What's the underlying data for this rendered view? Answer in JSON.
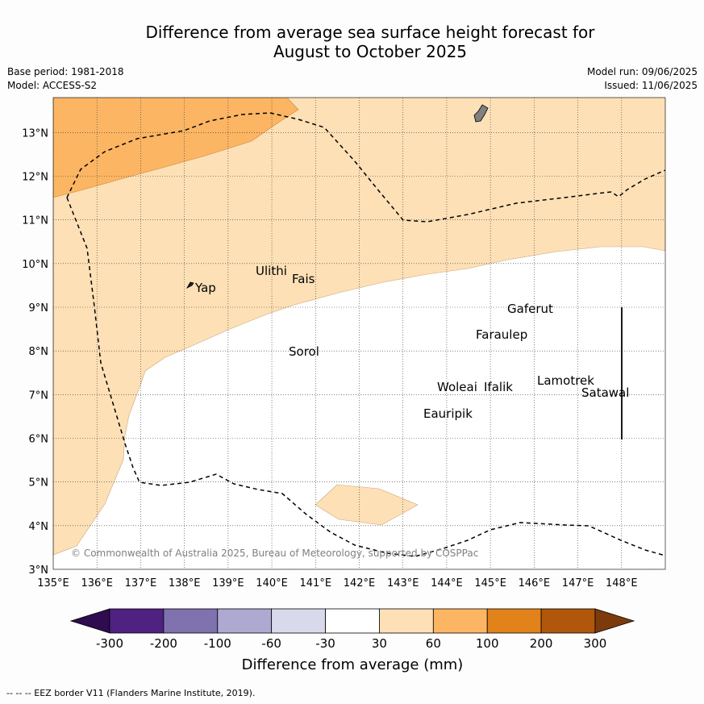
{
  "title_line1": "Difference from average sea surface height forecast for",
  "title_line2": "August to October 2025",
  "base_period": "Base period: 1981-2018",
  "model": "Model: ACCESS-S2",
  "model_run": "Model run: 09/06/2025",
  "issued": "Issued: 11/06/2025",
  "copyright": "© Commonwealth of Australia 2025, Bureau of Meteorology, supported by COSPPac",
  "footer_note": "--  --  -- EEZ border V11 (Flanders Marine Institute, 2019).",
  "map": {
    "lon_min": 135,
    "lon_max": 149,
    "lat_min": 3,
    "lat_max": 13.8,
    "lon_ticks": [
      "135°E",
      "136°E",
      "137°E",
      "138°E",
      "139°E",
      "140°E",
      "141°E",
      "142°E",
      "143°E",
      "144°E",
      "145°E",
      "146°E",
      "147°E",
      "148°E"
    ],
    "lat_ticks": [
      "3°N",
      "4°N",
      "5°N",
      "6°N",
      "7°N",
      "8°N",
      "9°N",
      "10°N",
      "11°N",
      "12°N",
      "13°N"
    ],
    "places": [
      "Yap",
      "Ulithi",
      "Fais",
      "Sorol",
      "Gaferut",
      "Faraulep",
      "Woleai",
      "Ifalik",
      "Eauripik",
      "Lamotrek",
      "Satawal"
    ]
  },
  "colorbar": {
    "label": "Difference from average (mm)",
    "tick_labels": [
      "-300",
      "-200",
      "-100",
      "-60",
      "-30",
      "30",
      "60",
      "100",
      "200",
      "300"
    ],
    "colors": [
      "#2f0b4f",
      "#4f2181",
      "#7f72ae",
      "#aea9d1",
      "#d9d9ec",
      "#ffffff",
      "#fde0b6",
      "#fbb563",
      "#e1821a",
      "#b0570b",
      "#7c3a0d"
    ]
  },
  "fill_colors": {
    "light_orange": "#fde0b6",
    "orange": "#fbb563",
    "land": "#808080"
  }
}
